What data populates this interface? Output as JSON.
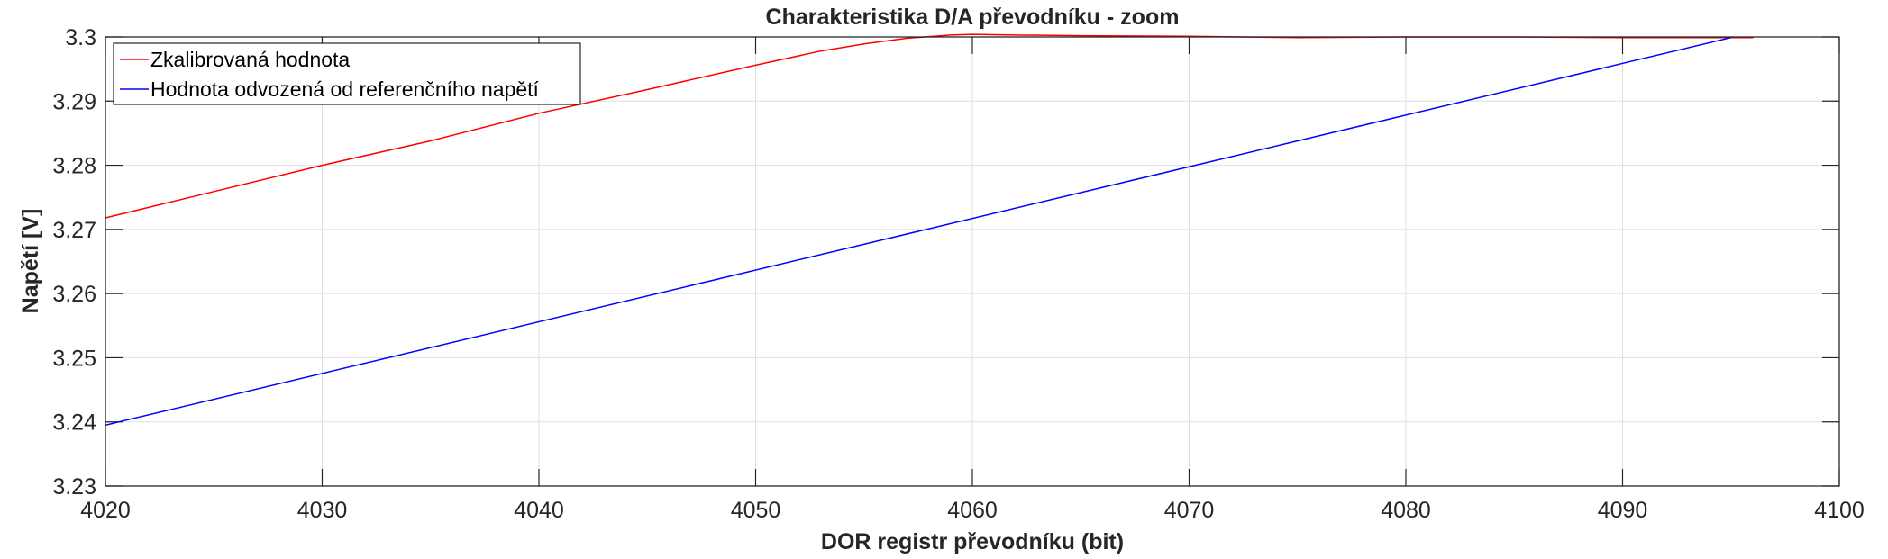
{
  "chart_data": {
    "type": "line",
    "title": "Charakteristika D/A převodníku - zoom",
    "xlabel": "DOR registr převodníku (bit)",
    "ylabel": "Napětí [V]",
    "xlim": [
      4020,
      4100
    ],
    "ylim": [
      3.23,
      3.3
    ],
    "x_ticks": [
      4020,
      4030,
      4040,
      4050,
      4060,
      4070,
      4080,
      4090,
      4100
    ],
    "x_tick_labels": [
      "4020",
      "4030",
      "4040",
      "4050",
      "4060",
      "4070",
      "4080",
      "4090",
      "4100"
    ],
    "y_ticks": [
      3.23,
      3.24,
      3.25,
      3.26,
      3.27,
      3.28,
      3.29,
      3.3
    ],
    "y_tick_labels": [
      "3.23",
      "3.24",
      "3.25",
      "3.26",
      "3.27",
      "3.28",
      "3.29",
      "3.3"
    ],
    "grid": true,
    "legend_position": "top-left",
    "series": [
      {
        "name": "Zkalibrovaná hodnota",
        "color": "#ff0000",
        "x": [
          4020,
          4025,
          4030,
          4035,
          4040,
          4045,
          4050,
          4053,
          4055,
          4057,
          4059,
          4060,
          4062,
          4065,
          4070,
          4075,
          4080,
          4085,
          4090,
          4095,
          4096
        ],
        "y": [
          3.2718,
          3.2759,
          3.28,
          3.2838,
          3.2881,
          3.2918,
          3.2956,
          3.2978,
          3.2989,
          3.2998,
          3.3003,
          3.3004,
          3.3003,
          3.3002,
          3.3001,
          3.2999,
          3.3,
          3.3,
          3.2999,
          3.2999,
          3.2999
        ]
      },
      {
        "name": "Hodnota odvozená od referenčního napětí",
        "color": "#0000ff",
        "x": [
          4020,
          4095
        ],
        "y": [
          3.2395,
          3.2999
        ]
      }
    ]
  }
}
